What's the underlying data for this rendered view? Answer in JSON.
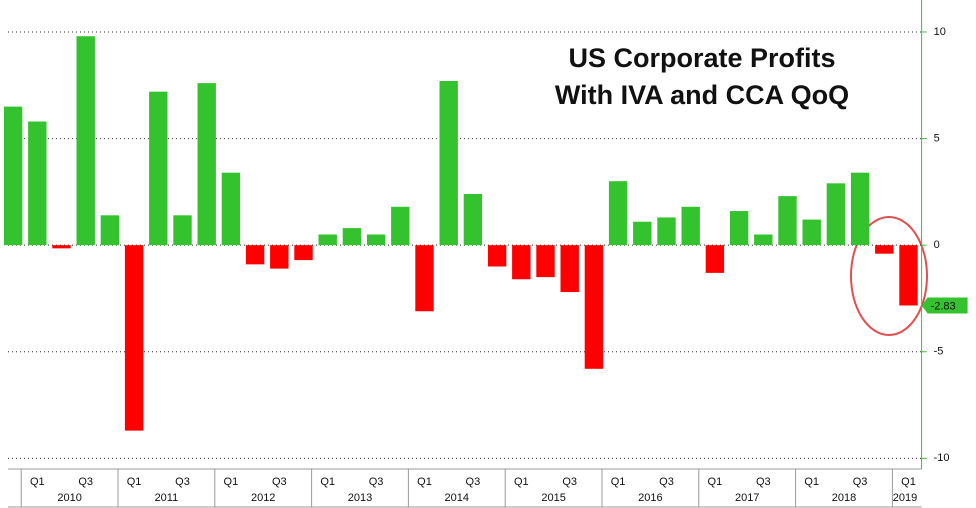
{
  "chart_data": {
    "type": "bar",
    "title": [
      "US Corporate Profits",
      "With IVA and CCA QoQ"
    ],
    "categories": [
      null,
      "Q1",
      null,
      "Q3",
      null,
      "Q1",
      null,
      "Q3",
      null,
      "Q1",
      null,
      "Q3",
      null,
      "Q1",
      null,
      "Q3",
      null,
      "Q1",
      null,
      "Q3",
      null,
      "Q1",
      null,
      "Q3",
      null,
      "Q1",
      null,
      "Q3",
      null,
      "Q1",
      null,
      "Q3",
      null,
      "Q1",
      null,
      "Q3",
      null,
      "Q1"
    ],
    "years": [
      "2010",
      "2011",
      "2012",
      "2013",
      "2014",
      "2015",
      "2016",
      "2017",
      "2018",
      "2019"
    ],
    "values": [
      6.5,
      5.8,
      -0.15,
      9.8,
      1.4,
      -8.7,
      7.2,
      1.4,
      7.6,
      3.4,
      -0.9,
      -1.1,
      -0.7,
      0.5,
      0.8,
      0.5,
      1.8,
      -3.1,
      7.7,
      2.4,
      -1.0,
      -1.6,
      -1.5,
      -2.2,
      -5.8,
      3.0,
      1.1,
      1.3,
      1.8,
      -1.3,
      1.6,
      0.5,
      2.3,
      1.2,
      2.9,
      3.4,
      -0.4,
      -2.83
    ],
    "positive_color": "#35c22f",
    "negative_color": "#ff0000",
    "ylim": [
      -10.5,
      11.5
    ],
    "yticks": [
      -10,
      -5,
      0,
      5,
      10
    ],
    "grid": true
  }
}
